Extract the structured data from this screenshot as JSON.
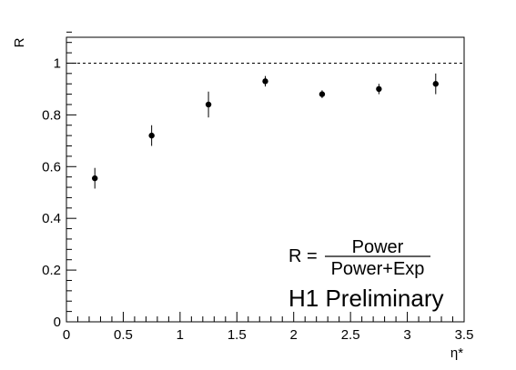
{
  "chart_data": {
    "type": "scatter",
    "xlabel": "η*",
    "ylabel": "R",
    "xlim": [
      0,
      3.5
    ],
    "ylim": [
      0,
      1.1
    ],
    "x_ticks": [
      0,
      0.5,
      1,
      1.5,
      2,
      2.5,
      3,
      3.5
    ],
    "x_tick_labels": [
      "0",
      "0.5",
      "1",
      "1.5",
      "2",
      "2.5",
      "3",
      "3.5"
    ],
    "y_ticks": [
      0,
      0.2,
      0.4,
      0.6,
      0.8,
      1
    ],
    "y_tick_labels": [
      "0",
      "0.2",
      "0.4",
      "0.6",
      "0.8",
      "1"
    ],
    "reference_line": {
      "y": 1.0,
      "style": "dashed"
    },
    "series": [
      {
        "x": [
          0.25,
          0.75,
          1.25,
          1.75,
          2.25,
          2.75,
          3.25
        ],
        "y": [
          0.555,
          0.72,
          0.84,
          0.93,
          0.88,
          0.9,
          0.92
        ],
        "yerr": [
          0.04,
          0.04,
          0.05,
          0.02,
          0.015,
          0.02,
          0.04
        ]
      }
    ],
    "grid": false,
    "legend": "none",
    "annotations": {
      "formula_lhs": "R =",
      "formula_numerator": "Power",
      "formula_denominator": "Power+Exp",
      "watermark": "H1 Preliminary"
    }
  }
}
